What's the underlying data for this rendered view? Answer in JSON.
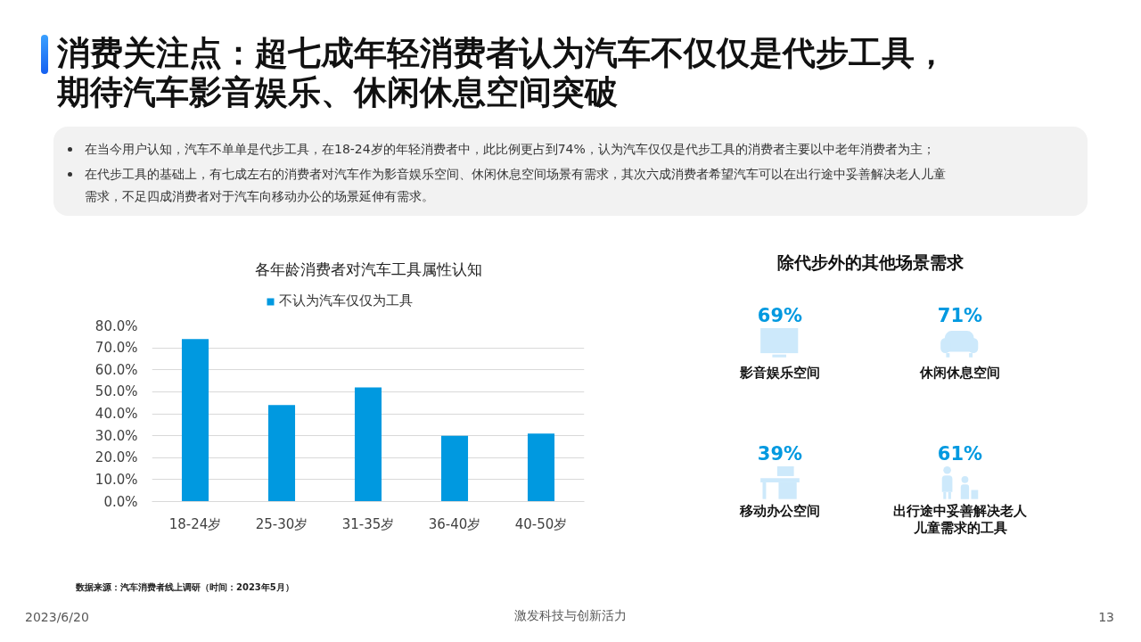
{
  "chart_data": [
    {
      "type": "other",
      "title": "消费关注点：超七成年轻消费者认为汽车不仅仅是代步工具，期待汽车影音娱乐、休闲休息空间突破",
      "annotations": [
        "在当今用户认知，汽车不单单是代步工具，在18-24岁的年轻消费者中，此比例更占到74%，认为汽车仅仅是代步工具的消费者主要以中老年消费者为主；",
        "在代步工具的基础上，有七成左右的消费者对汽车作为影音娱乐空间、休闲休息空间场景有需求，其次六成消费者希望汽车可以在出行途中妥善解决老人儿童需求，不足四成消费者对于汽车向移动办公的场景延伸有需求。"
      ]
    },
    {
      "type": "bar",
      "title": "各年龄消费者对汽车工具属性认知",
      "categories": [
        "18-24岁",
        "25-30岁",
        "31-35岁",
        "36-40岁",
        "40-50岁"
      ],
      "series": [
        {
          "name": "不认为汽车仅仅为工具",
          "color": "#0099e0",
          "values": [
            74,
            44,
            52,
            30,
            31
          ]
        }
      ],
      "ylim": [
        0,
        80
      ],
      "yticks": [
        {
          "value": 0,
          "label": "0.0%"
        },
        {
          "value": 10,
          "label": "10.0%"
        },
        {
          "value": 20,
          "label": "20.0%"
        },
        {
          "value": 30,
          "label": "30.0%"
        },
        {
          "value": 40,
          "label": "40.0%"
        },
        {
          "value": 50,
          "label": "50.0%"
        },
        {
          "value": 60,
          "label": "60.0%"
        },
        {
          "value": 70,
          "label": "70.0%"
        },
        {
          "value": 80,
          "label": "80.0%"
        }
      ],
      "grid": "y",
      "legend": "top"
    },
    {
      "type": "other",
      "title": "除代步外的其他场景需求",
      "categories": [
        "影音娱乐空间",
        "休闲休息空间",
        "移动办公空间",
        "出行途中妥善解决老人儿童需求的工具"
      ],
      "values": [
        69,
        71,
        39,
        61
      ],
      "value_labels": [
        "69%",
        "71%",
        "39%",
        "61%"
      ],
      "colors": [
        "#0099e0",
        "#0099e0",
        "#0099e0",
        "#0099e0"
      ]
    },
    {
      "type": "other",
      "annotations": [
        "数据来源：汽车消费者线上调研（时间：2023年5月）",
        "2023/6/20",
        "激发科技与创新活力",
        "13"
      ]
    }
  ]
}
